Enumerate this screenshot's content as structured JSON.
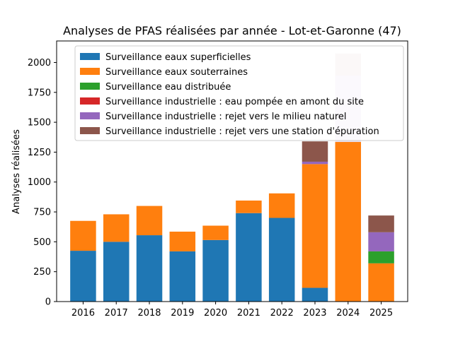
{
  "chart_data": {
    "type": "bar",
    "stacked": true,
    "title": "Analyses de PFAS réalisées par année - Lot-et-Garonne (47)",
    "xlabel": "",
    "ylabel": "Analyses réalisées",
    "ylim": [
      0,
      2180
    ],
    "yticks": [
      0,
      250,
      500,
      750,
      1000,
      1250,
      1500,
      1750,
      2000
    ],
    "ytick_labels": [
      "0",
      "250",
      "500",
      "750",
      "1000",
      "1250",
      "1500",
      "1750",
      "2000"
    ],
    "categories": [
      "2016",
      "2017",
      "2018",
      "2019",
      "2020",
      "2021",
      "2022",
      "2023",
      "2024",
      "2025"
    ],
    "legend_position": "top-center",
    "series": [
      {
        "name": "Surveillance eaux superficielles",
        "color": "#1f77b4",
        "values": [
          425,
          500,
          555,
          420,
          515,
          740,
          700,
          115,
          0,
          0
        ]
      },
      {
        "name": "Surveillance eaux souterraines",
        "color": "#ff7f0e",
        "values": [
          250,
          230,
          245,
          165,
          120,
          105,
          205,
          1035,
          1335,
          320
        ]
      },
      {
        "name": "Surveillance eau distribuée",
        "color": "#2ca02c",
        "values": [
          0,
          0,
          0,
          0,
          0,
          0,
          0,
          0,
          0,
          100
        ]
      },
      {
        "name": "Surveillance industrielle : eau pompée en amont du site",
        "color": "#d62728",
        "values": [
          0,
          0,
          0,
          0,
          0,
          0,
          0,
          0,
          0,
          0
        ]
      },
      {
        "name": "Surveillance industrielle : rejet vers le milieu naturel",
        "color": "#9467bd",
        "values": [
          0,
          0,
          0,
          0,
          0,
          0,
          0,
          20,
          555,
          160
        ]
      },
      {
        "name": "Surveillance industrielle : rejet vers une station d'épuration",
        "color": "#8c564b",
        "values": [
          0,
          0,
          0,
          0,
          0,
          0,
          0,
          170,
          185,
          140
        ]
      }
    ],
    "faded_categories": [
      "2024"
    ],
    "faded_opacity": 0.2
  }
}
